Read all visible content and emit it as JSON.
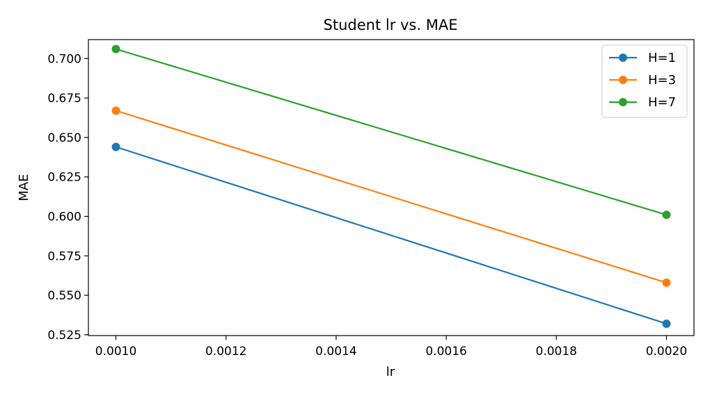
{
  "chart_data": {
    "type": "line",
    "title": "Student lr vs. MAE",
    "xlabel": "lr",
    "ylabel": "MAE",
    "x": [
      0.001,
      0.002
    ],
    "xlim": [
      0.00095,
      0.00205
    ],
    "ylim": [
      0.5245,
      0.712
    ],
    "xticks": [
      0.001,
      0.0012,
      0.0014,
      0.0016,
      0.0018,
      0.002
    ],
    "xtick_labels": [
      "0.0010",
      "0.0012",
      "0.0014",
      "0.0016",
      "0.0018",
      "0.0020"
    ],
    "yticks": [
      0.525,
      0.55,
      0.575,
      0.6,
      0.625,
      0.65,
      0.675,
      0.7
    ],
    "ytick_labels": [
      "0.525",
      "0.550",
      "0.575",
      "0.600",
      "0.625",
      "0.650",
      "0.675",
      "0.700"
    ],
    "grid": false,
    "legend_position": "top-right",
    "series": [
      {
        "name": "H=1",
        "color": "#1f77b4",
        "values": [
          0.644,
          0.532
        ]
      },
      {
        "name": "H=3",
        "color": "#ff7f0e",
        "values": [
          0.667,
          0.558
        ]
      },
      {
        "name": "H=7",
        "color": "#2ca02c",
        "values": [
          0.706,
          0.601
        ]
      }
    ]
  }
}
